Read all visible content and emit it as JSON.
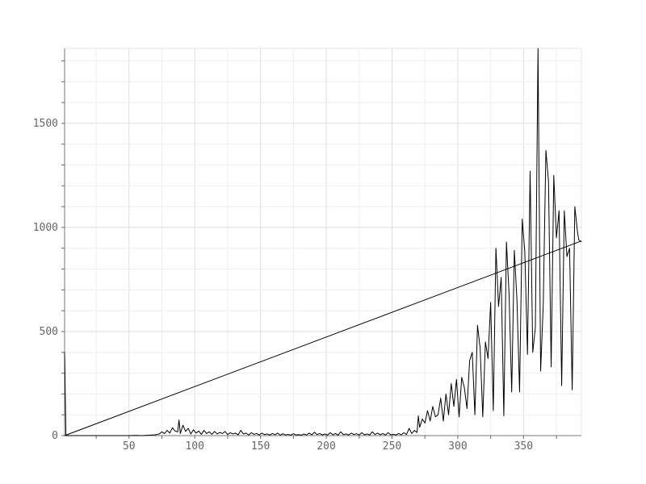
{
  "chart_data": {
    "type": "line",
    "title": "",
    "xlabel": "",
    "ylabel": "",
    "xlim": [
      1,
      394
    ],
    "ylim": [
      0,
      1860
    ],
    "grid": true,
    "legend": "none",
    "x_ticks": [
      50,
      100,
      150,
      200,
      250,
      300,
      350
    ],
    "x_tick_labels": [
      "50",
      "100",
      "150",
      "200",
      "250",
      "300",
      "350"
    ],
    "y_ticks": [
      0,
      500,
      1000,
      1500
    ],
    "y_tick_labels": [
      "0",
      "500",
      "1000",
      "1500"
    ],
    "series": [
      {
        "color": "#000000",
        "points": [
          [
            1,
            400
          ],
          [
            2,
            0
          ],
          [
            10,
            0
          ],
          [
            20,
            0
          ],
          [
            30,
            0
          ],
          [
            40,
            0
          ],
          [
            50,
            0
          ],
          [
            55,
            1
          ],
          [
            60,
            0
          ],
          [
            65,
            2
          ],
          [
            70,
            4
          ],
          [
            73,
            8
          ],
          [
            75,
            18
          ],
          [
            77,
            10
          ],
          [
            79,
            25
          ],
          [
            81,
            12
          ],
          [
            83,
            38
          ],
          [
            85,
            22
          ],
          [
            87,
            18
          ],
          [
            88,
            75
          ],
          [
            89,
            10
          ],
          [
            91,
            50
          ],
          [
            93,
            20
          ],
          [
            95,
            35
          ],
          [
            97,
            8
          ],
          [
            99,
            28
          ],
          [
            101,
            12
          ],
          [
            103,
            22
          ],
          [
            105,
            6
          ],
          [
            107,
            25
          ],
          [
            109,
            10
          ],
          [
            111,
            18
          ],
          [
            113,
            6
          ],
          [
            115,
            20
          ],
          [
            117,
            8
          ],
          [
            119,
            15
          ],
          [
            121,
            10
          ],
          [
            123,
            20
          ],
          [
            125,
            5
          ],
          [
            127,
            14
          ],
          [
            129,
            8
          ],
          [
            131,
            12
          ],
          [
            133,
            4
          ],
          [
            135,
            25
          ],
          [
            137,
            8
          ],
          [
            139,
            12
          ],
          [
            141,
            3
          ],
          [
            143,
            14
          ],
          [
            145,
            6
          ],
          [
            147,
            10
          ],
          [
            149,
            3
          ],
          [
            151,
            12
          ],
          [
            153,
            5
          ],
          [
            155,
            8
          ],
          [
            157,
            3
          ],
          [
            159,
            10
          ],
          [
            161,
            4
          ],
          [
            163,
            12
          ],
          [
            165,
            2
          ],
          [
            167,
            9
          ],
          [
            169,
            3
          ],
          [
            171,
            6
          ],
          [
            173,
            2
          ],
          [
            175,
            9
          ],
          [
            177,
            3
          ],
          [
            179,
            5
          ],
          [
            181,
            2
          ],
          [
            183,
            8
          ],
          [
            185,
            3
          ],
          [
            187,
            12
          ],
          [
            189,
            4
          ],
          [
            191,
            16
          ],
          [
            193,
            5
          ],
          [
            195,
            10
          ],
          [
            197,
            3
          ],
          [
            199,
            8
          ],
          [
            201,
            3
          ],
          [
            203,
            14
          ],
          [
            205,
            4
          ],
          [
            207,
            10
          ],
          [
            209,
            2
          ],
          [
            211,
            18
          ],
          [
            213,
            5
          ],
          [
            215,
            8
          ],
          [
            217,
            3
          ],
          [
            219,
            12
          ],
          [
            221,
            5
          ],
          [
            223,
            9
          ],
          [
            225,
            3
          ],
          [
            227,
            14
          ],
          [
            229,
            4
          ],
          [
            231,
            8
          ],
          [
            233,
            3
          ],
          [
            235,
            18
          ],
          [
            237,
            5
          ],
          [
            239,
            12
          ],
          [
            241,
            4
          ],
          [
            243,
            10
          ],
          [
            245,
            3
          ],
          [
            247,
            14
          ],
          [
            249,
            4
          ],
          [
            251,
            6
          ],
          [
            253,
            3
          ],
          [
            255,
            10
          ],
          [
            257,
            4
          ],
          [
            259,
            14
          ],
          [
            261,
            5
          ],
          [
            263,
            35
          ],
          [
            265,
            10
          ],
          [
            267,
            25
          ],
          [
            269,
            15
          ],
          [
            270,
            95
          ],
          [
            271,
            40
          ],
          [
            273,
            80
          ],
          [
            275,
            60
          ],
          [
            277,
            120
          ],
          [
            279,
            70
          ],
          [
            281,
            140
          ],
          [
            283,
            90
          ],
          [
            285,
            100
          ],
          [
            287,
            180
          ],
          [
            289,
            70
          ],
          [
            291,
            200
          ],
          [
            293,
            100
          ],
          [
            295,
            250
          ],
          [
            297,
            140
          ],
          [
            299,
            270
          ],
          [
            301,
            90
          ],
          [
            303,
            280
          ],
          [
            305,
            230
          ],
          [
            307,
            130
          ],
          [
            309,
            360
          ],
          [
            311,
            400
          ],
          [
            313,
            100
          ],
          [
            315,
            530
          ],
          [
            317,
            420
          ],
          [
            319,
            90
          ],
          [
            321,
            450
          ],
          [
            323,
            370
          ],
          [
            325,
            640
          ],
          [
            327,
            120
          ],
          [
            329,
            900
          ],
          [
            331,
            620
          ],
          [
            333,
            760
          ],
          [
            335,
            95
          ],
          [
            337,
            930
          ],
          [
            339,
            680
          ],
          [
            341,
            210
          ],
          [
            343,
            890
          ],
          [
            345,
            650
          ],
          [
            347,
            210
          ],
          [
            349,
            1040
          ],
          [
            351,
            880
          ],
          [
            353,
            390
          ],
          [
            355,
            1270
          ],
          [
            357,
            400
          ],
          [
            359,
            520
          ],
          [
            361,
            1860
          ],
          [
            363,
            310
          ],
          [
            365,
            630
          ],
          [
            367,
            1370
          ],
          [
            369,
            1220
          ],
          [
            371,
            330
          ],
          [
            373,
            1250
          ],
          [
            375,
            950
          ],
          [
            377,
            1080
          ],
          [
            379,
            240
          ],
          [
            381,
            1080
          ],
          [
            383,
            860
          ],
          [
            385,
            900
          ],
          [
            387,
            220
          ],
          [
            389,
            1100
          ],
          [
            391,
            980
          ],
          [
            392,
            940
          ],
          [
            394,
            930
          ]
        ]
      },
      {
        "color": "#000000",
        "points": [
          [
            1,
            0
          ],
          [
            394,
            935
          ]
        ]
      }
    ]
  }
}
